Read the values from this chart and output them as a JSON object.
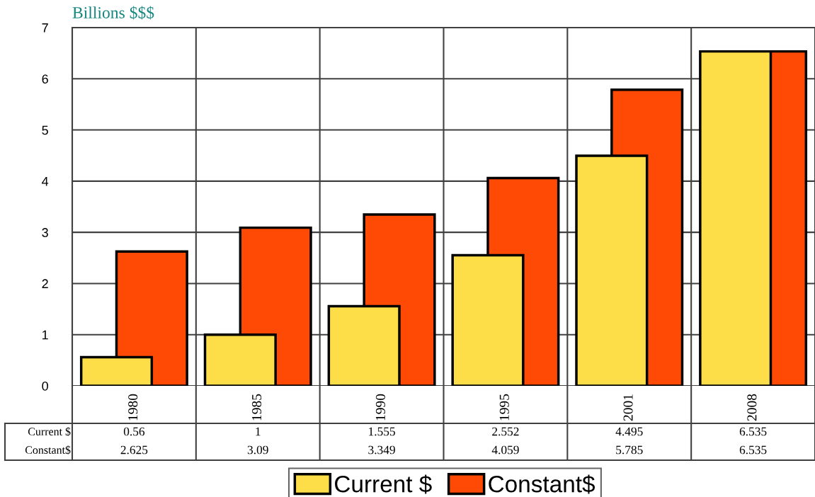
{
  "chart_data": {
    "type": "bar",
    "ylabel": "Billions $$$",
    "categories": [
      "1980",
      "1985",
      "1990",
      "1995",
      "2001",
      "2008"
    ],
    "series": [
      {
        "name": "Current $",
        "color": "#fddd48",
        "values": [
          0.56,
          1,
          1.555,
          2.552,
          4.495,
          6.535
        ]
      },
      {
        "name": "Constant$",
        "color": "#ff4a05",
        "values": [
          2.625,
          3.09,
          3.349,
          4.059,
          5.785,
          6.535
        ]
      }
    ],
    "ylim": [
      0,
      7
    ],
    "yticks": [
      0,
      1,
      2,
      3,
      4,
      5,
      6,
      7
    ],
    "grid": true,
    "legend": "bottom",
    "data_labels": true
  }
}
